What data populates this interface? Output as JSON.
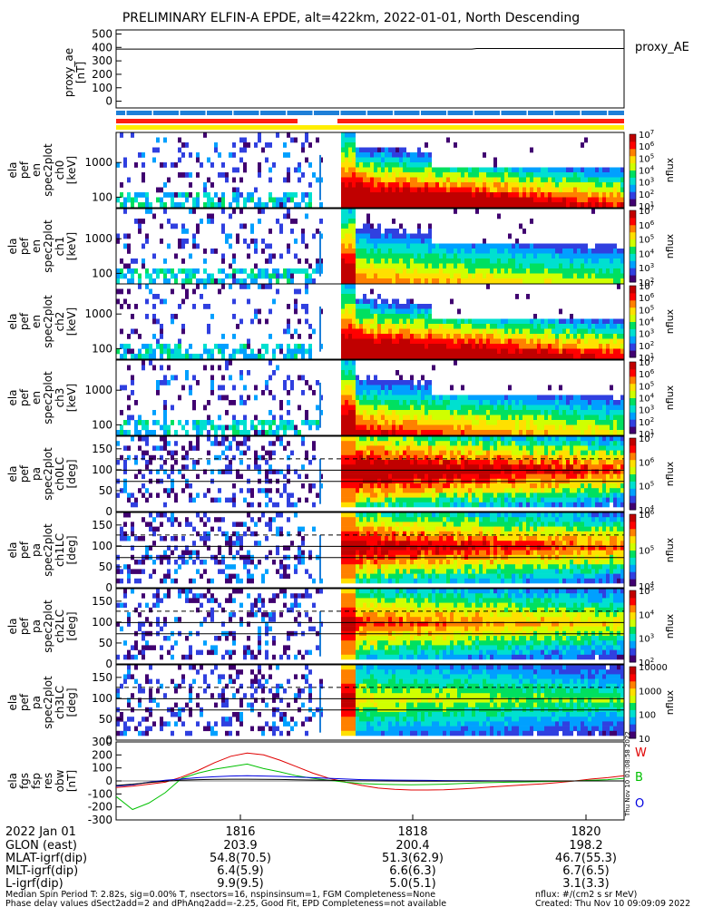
{
  "title": "PRELIMINARY ELFIN-A EPDE, alt=422km, 2022-01-01, North Descending",
  "colors": {
    "status_blue": "#1e7fd8",
    "status_red": "#ff2010",
    "status_yellow": "#ffee00",
    "line_black": "#000000",
    "line_red": "#e00000",
    "line_green": "#00c000",
    "line_blue": "#0000e0",
    "spec_colorscale": [
      "#400070",
      "#3040e0",
      "#00a0ff",
      "#00e0d0",
      "#00e060",
      "#d0ff00",
      "#ffe000",
      "#ff8000",
      "#ff0000",
      "#c00000"
    ]
  },
  "chart_data": [
    {
      "type": "line",
      "panel": "proxy_ae",
      "ylabel": [
        "proxy_ae",
        "[nT]"
      ],
      "right_label": "proxy_AE",
      "yticks": [
        "0",
        "100",
        "200",
        "300",
        "400",
        "500"
      ],
      "ylim": [
        -50,
        530
      ],
      "series": [
        {
          "x": [
            0.0,
            0.7,
            0.71,
            1.0
          ],
          "values": [
            388,
            388,
            392,
            392
          ]
        }
      ]
    },
    {
      "type": "heatmap",
      "panel": "en_spec_ch0",
      "ylabel": [
        "ela",
        "pef",
        "en",
        "spec2plot",
        "ch0",
        "[keV]"
      ],
      "yticks": [
        "100",
        "1000"
      ],
      "scale": "log",
      "cbar_label": "nflux",
      "cbar_ticks": [
        "10^1",
        "10^2",
        "10^3",
        "10^4",
        "10^5",
        "10^6",
        "10^7"
      ]
    },
    {
      "type": "heatmap",
      "panel": "en_spec_ch1",
      "ylabel": [
        "ela",
        "pef",
        "en",
        "spec2plot",
        "ch1",
        "[keV]"
      ],
      "yticks": [
        "100",
        "1000"
      ],
      "scale": "log",
      "cbar_label": "nflux",
      "cbar_ticks": [
        "10^2",
        "10^3",
        "10^4",
        "10^5",
        "10^6",
        "10^7"
      ]
    },
    {
      "type": "heatmap",
      "panel": "en_spec_ch2",
      "ylabel": [
        "ela",
        "pef",
        "en",
        "spec2plot",
        "ch2",
        "[keV]"
      ],
      "yticks": [
        "100",
        "1000"
      ],
      "scale": "log",
      "cbar_label": "nflux",
      "cbar_ticks": [
        "10^1",
        "10^2",
        "10^3",
        "10^4",
        "10^5",
        "10^6",
        "10^7"
      ]
    },
    {
      "type": "heatmap",
      "panel": "en_spec_ch3",
      "ylabel": [
        "ela",
        "pef",
        "en",
        "spec2plot",
        "ch3",
        "[keV]"
      ],
      "yticks": [
        "100",
        "1000"
      ],
      "scale": "log",
      "cbar_label": "nflux",
      "cbar_ticks": [
        "10^1",
        "10^2",
        "10^3",
        "10^4",
        "10^5",
        "10^6",
        "10^7"
      ]
    },
    {
      "type": "heatmap",
      "panel": "pa_spec_ch0LC",
      "ylabel": [
        "ela",
        "pef",
        "pa",
        "spec2plot",
        "ch0LC",
        "[deg]"
      ],
      "yticks": [
        "0",
        "50",
        "100",
        "150"
      ],
      "scale": "log",
      "cbar_label": "nflux",
      "cbar_ticks": [
        "10^4",
        "10^5",
        "10^6",
        "10^7"
      ]
    },
    {
      "type": "heatmap",
      "panel": "pa_spec_ch1LC",
      "ylabel": [
        "ela",
        "pef",
        "pa",
        "spec2plot",
        "ch1LC",
        "[deg]"
      ],
      "yticks": [
        "0",
        "50",
        "100",
        "150"
      ],
      "scale": "log",
      "cbar_label": "nflux",
      "cbar_ticks": [
        "10^4",
        "10^5",
        "10^6"
      ]
    },
    {
      "type": "heatmap",
      "panel": "pa_spec_ch2LC",
      "ylabel": [
        "ela",
        "pef",
        "pa",
        "spec2plot",
        "ch2LC",
        "[deg]"
      ],
      "yticks": [
        "0",
        "50",
        "100",
        "150"
      ],
      "scale": "log",
      "cbar_label": "nflux",
      "cbar_ticks": [
        "10^2",
        "10^3",
        "10^4",
        "10^5"
      ]
    },
    {
      "type": "heatmap",
      "panel": "pa_spec_ch3LC",
      "ylabel": [
        "ela",
        "pef",
        "pa",
        "spec2plot",
        "ch3LC",
        "[deg]"
      ],
      "yticks": [
        "0",
        "50",
        "100",
        "150"
      ],
      "scale": "linear-log",
      "cbar_label": "nflux",
      "cbar_ticks": [
        "10",
        "100",
        "1000",
        "10000"
      ]
    },
    {
      "type": "line",
      "panel": "fgs_res",
      "ylabel": [
        "ela",
        "fgs",
        "fsp",
        "res",
        "obw",
        "[nT]"
      ],
      "yticks": [
        "-300",
        "-200",
        "-100",
        "0",
        "100",
        "200",
        "300"
      ],
      "ylim": [
        -300,
        300
      ],
      "legend": [
        "W",
        "B",
        "O"
      ],
      "series": [
        {
          "name": "W",
          "color": "#e00000",
          "values": [
            -50,
            -40,
            -25,
            -10,
            30,
            80,
            140,
            190,
            215,
            200,
            160,
            110,
            60,
            20,
            -10,
            -35,
            -55,
            -65,
            -70,
            -70,
            -68,
            -62,
            -55,
            -45,
            -38,
            -30,
            -22,
            -12,
            0,
            15,
            25,
            40
          ]
        },
        {
          "name": "B",
          "color": "#00c000",
          "values": [
            -120,
            -220,
            -170,
            -90,
            20,
            60,
            90,
            110,
            130,
            95,
            70,
            40,
            20,
            5,
            -10,
            -20,
            -25,
            -28,
            -30,
            -28,
            -25,
            -20,
            -15,
            -12,
            -10,
            -8,
            -5,
            -3,
            0,
            5,
            10,
            20
          ]
        },
        {
          "name": "O",
          "color": "#0000e0",
          "values": [
            -40,
            -30,
            -10,
            5,
            15,
            25,
            32,
            38,
            40,
            38,
            35,
            30,
            25,
            20,
            15,
            10,
            8,
            6,
            5,
            4,
            3,
            2,
            2,
            1,
            1,
            0,
            0,
            0,
            0,
            0,
            0,
            0
          ]
        },
        {
          "name": "",
          "color": "#000000",
          "values": [
            -35,
            -25,
            -12,
            -2,
            6,
            10,
            12,
            13,
            13,
            12,
            11,
            9,
            7,
            5,
            3,
            1,
            0,
            -1,
            -2,
            -2,
            -2,
            -2,
            -2,
            -1,
            -1,
            -1,
            0,
            0,
            0,
            0,
            0,
            0
          ]
        }
      ]
    }
  ],
  "time_axis": {
    "xticks": [
      "1816",
      "1818",
      "1820"
    ],
    "rows": [
      {
        "label": "2022 Jan 01",
        "values": [
          "1816",
          "1818",
          "1820"
        ]
      },
      {
        "label": "GLON (east)",
        "values": [
          "203.9",
          "200.4",
          "198.2"
        ]
      },
      {
        "label": "MLAT-igrf(dip)",
        "values": [
          "54.8(70.5)",
          "51.3(62.9)",
          "46.7(55.3)"
        ]
      },
      {
        "label": "MLT-igrf(dip)",
        "values": [
          "6.4(5.9)",
          "6.6(6.3)",
          "6.7(6.5)"
        ]
      },
      {
        "label": "L-igrf(dip)",
        "values": [
          "9.9(9.5)",
          "5.0(5.1)",
          "3.1(3.3)"
        ]
      }
    ]
  },
  "side_stamp": "Thu Nov 10 01:08:58 2022",
  "footer": {
    "line1_left": "Median Spin Period T: 2.82s, sig=0.00% T, nsectors=16, nspinsinsum=1, FGM Completeness=None",
    "line2_left": "Phase delay values dSect2add=2 and dPhAng2add=-2.25, Good Fit, EPD Completeness=not available",
    "line1_right": "nflux: #/(cm2 s sr MeV)",
    "line2_right": "Created: Thu Nov 10 09:09:09 2022"
  }
}
